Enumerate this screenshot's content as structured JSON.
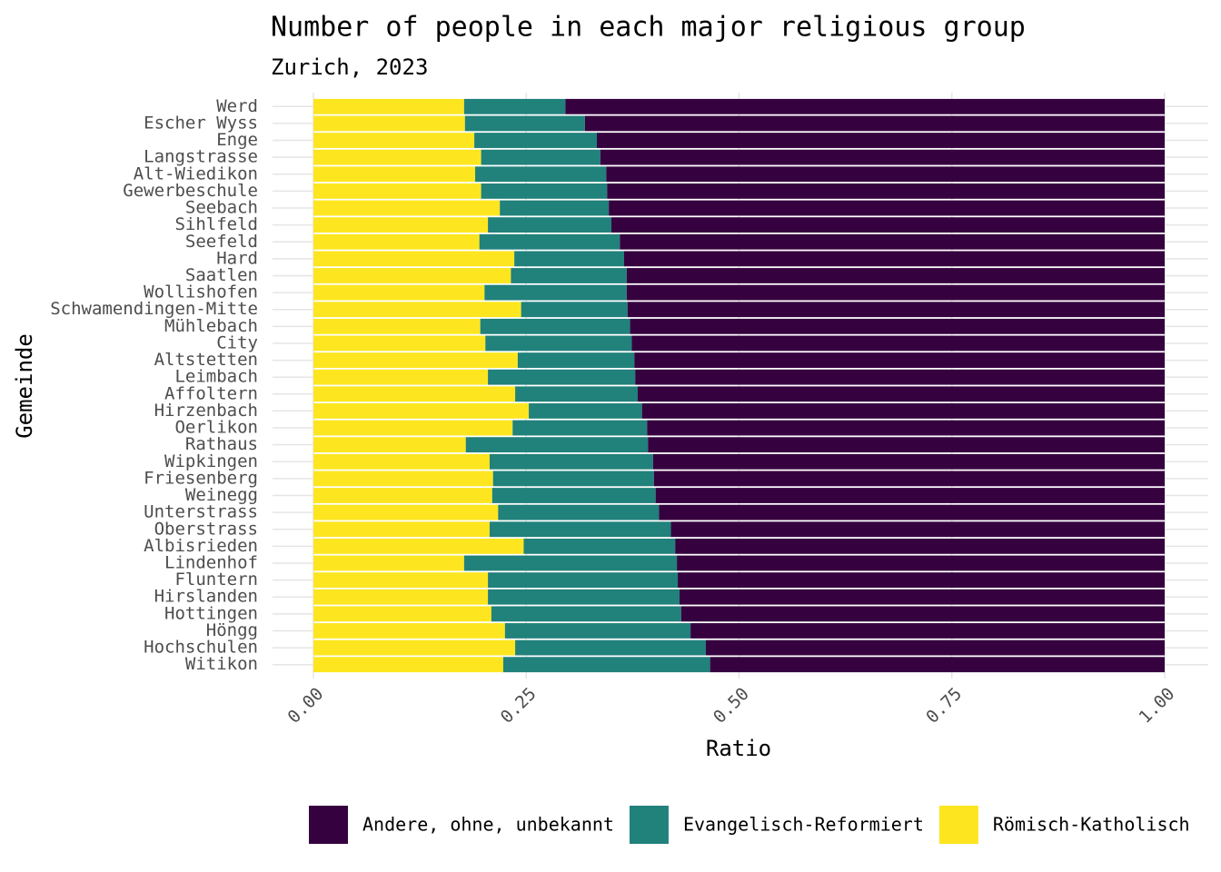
{
  "chart_data": {
    "type": "bar",
    "orientation": "horizontal",
    "stacked": true,
    "title": "Number of people in each major religious group",
    "subtitle": "Zurich, 2023",
    "xlabel": "Ratio",
    "ylabel": "Gemeinde",
    "categories": [
      "Werd",
      "Escher Wyss",
      "Enge",
      "Langstrasse",
      "Alt-Wiedikon",
      "Gewerbeschule",
      "Seebach",
      "Sihlfeld",
      "Seefeld",
      "Hard",
      "Saatlen",
      "Wollishofen",
      "Schwamendingen-Mitte",
      "Mühlebach",
      "City",
      "Altstetten",
      "Leimbach",
      "Affoltern",
      "Hirzenbach",
      "Oerlikon",
      "Rathaus",
      "Wipkingen",
      "Friesenberg",
      "Weinegg",
      "Unterstrass",
      "Oberstrass",
      "Albisrieden",
      "Lindenhof",
      "Fluntern",
      "Hirslanden",
      "Hottingen",
      "Höngg",
      "Hochschulen",
      "Witikon"
    ],
    "series": [
      {
        "name": "Andere, ohne, unbekannt",
        "color": "#36013f",
        "values": [
          0.704,
          0.681,
          0.667,
          0.663,
          0.656,
          0.655,
          0.653,
          0.65,
          0.64,
          0.635,
          0.632,
          0.632,
          0.631,
          0.628,
          0.626,
          0.623,
          0.622,
          0.619,
          0.614,
          0.608,
          0.607,
          0.601,
          0.6,
          0.598,
          0.594,
          0.58,
          0.575,
          0.573,
          0.572,
          0.57,
          0.568,
          0.557,
          0.539,
          0.534
        ]
      },
      {
        "name": "Evangelisch-Reformiert",
        "color": "#21817b",
        "values": [
          0.119,
          0.141,
          0.144,
          0.14,
          0.154,
          0.148,
          0.128,
          0.145,
          0.165,
          0.129,
          0.136,
          0.167,
          0.125,
          0.176,
          0.172,
          0.137,
          0.173,
          0.144,
          0.133,
          0.158,
          0.214,
          0.192,
          0.189,
          0.192,
          0.189,
          0.213,
          0.178,
          0.25,
          0.223,
          0.225,
          0.223,
          0.218,
          0.224,
          0.243
        ]
      },
      {
        "name": "Römisch-Katholisch",
        "color": "#fde61f",
        "values": [
          0.177,
          0.178,
          0.189,
          0.197,
          0.19,
          0.197,
          0.219,
          0.205,
          0.195,
          0.236,
          0.232,
          0.201,
          0.244,
          0.196,
          0.202,
          0.24,
          0.205,
          0.237,
          0.253,
          0.234,
          0.179,
          0.207,
          0.211,
          0.21,
          0.217,
          0.207,
          0.247,
          0.177,
          0.205,
          0.205,
          0.209,
          0.225,
          0.237,
          0.223
        ]
      }
    ],
    "xlim": [
      0,
      1
    ],
    "xticks": [
      {
        "value": 0,
        "label": "0.00"
      },
      {
        "value": 0.25,
        "label": "0.25"
      },
      {
        "value": 0.5,
        "label": "0.50"
      },
      {
        "value": 0.75,
        "label": "0.75"
      },
      {
        "value": 1,
        "label": "1.00"
      }
    ],
    "grid": true,
    "legend": "bottom"
  }
}
